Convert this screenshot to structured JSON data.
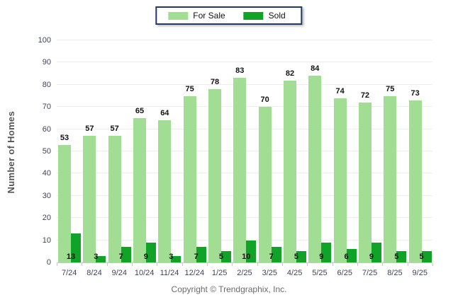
{
  "chart_data": {
    "type": "bar",
    "title": "",
    "categories": [
      "7/24",
      "8/24",
      "9/24",
      "10/24",
      "11/24",
      "12/24",
      "1/25",
      "2/25",
      "3/25",
      "4/25",
      "5/25",
      "6/25",
      "7/25",
      "8/25",
      "9/25"
    ],
    "series": [
      {
        "name": "For Sale",
        "color": "#A2DD94",
        "values": [
          53,
          57,
          57,
          65,
          64,
          75,
          78,
          83,
          70,
          82,
          84,
          74,
          72,
          75,
          73
        ]
      },
      {
        "name": "Sold",
        "color": "#11A328",
        "values": [
          13,
          3,
          7,
          9,
          3,
          7,
          5,
          10,
          7,
          5,
          9,
          6,
          9,
          5,
          5
        ]
      }
    ],
    "xlabel": "",
    "ylabel": "Number of Homes",
    "ylim": [
      0,
      100
    ],
    "ytick_step": 10,
    "yticks": [
      "0",
      "10",
      "20",
      "30",
      "40",
      "50",
      "60",
      "70",
      "80",
      "90",
      "100"
    ],
    "grid": true,
    "legend_position": "top"
  },
  "legend": {
    "items": [
      {
        "label": "For Sale",
        "color": "#A2DD94"
      },
      {
        "label": "Sold",
        "color": "#11A328"
      }
    ]
  },
  "footer": {
    "copyright": "Copyright © Trendgraphix, Inc."
  }
}
